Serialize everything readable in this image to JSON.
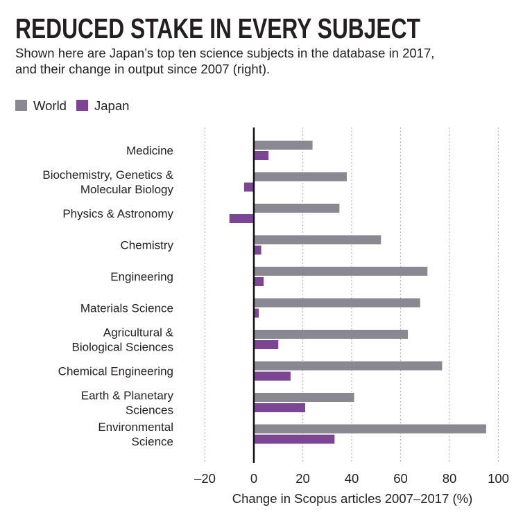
{
  "chart_data": {
    "type": "bar",
    "orientation": "horizontal",
    "title": "REDUCED STAKE IN EVERY SUBJECT",
    "subtitle_lines": [
      "Shown here are Japan’s top ten science subjects in the database in 2017,",
      "and their change in output since 2007 (right)."
    ],
    "categories": [
      [
        "Medicine"
      ],
      [
        "Biochemistry, Genetics &",
        "Molecular Biology"
      ],
      [
        "Physics & Astronomy"
      ],
      [
        "Chemistry"
      ],
      [
        "Engineering"
      ],
      [
        "Materials Science"
      ],
      [
        "Agricultural &",
        "Biological Sciences"
      ],
      [
        "Chemical Engineering"
      ],
      [
        "Earth & Planetary",
        "Sciences"
      ],
      [
        "Environmental",
        "Science"
      ]
    ],
    "series": [
      {
        "name": "World",
        "color": "#8a8890",
        "values": [
          24,
          38,
          35,
          52,
          71,
          68,
          63,
          77,
          41,
          95
        ]
      },
      {
        "name": "Japan",
        "color": "#7d4694",
        "values": [
          6,
          -4,
          -10,
          3,
          4,
          2,
          10,
          15,
          21,
          33
        ]
      }
    ],
    "xlabel": "Change in Scopus articles 2007–2017 (%)",
    "xticks": [
      -20,
      0,
      20,
      40,
      60,
      80,
      100
    ],
    "xtick_labels": [
      "–20",
      "0",
      "20",
      "40",
      "60",
      "80",
      "100"
    ],
    "xlim": [
      -20,
      100
    ],
    "grid": true,
    "legend_placement": "top-left"
  }
}
